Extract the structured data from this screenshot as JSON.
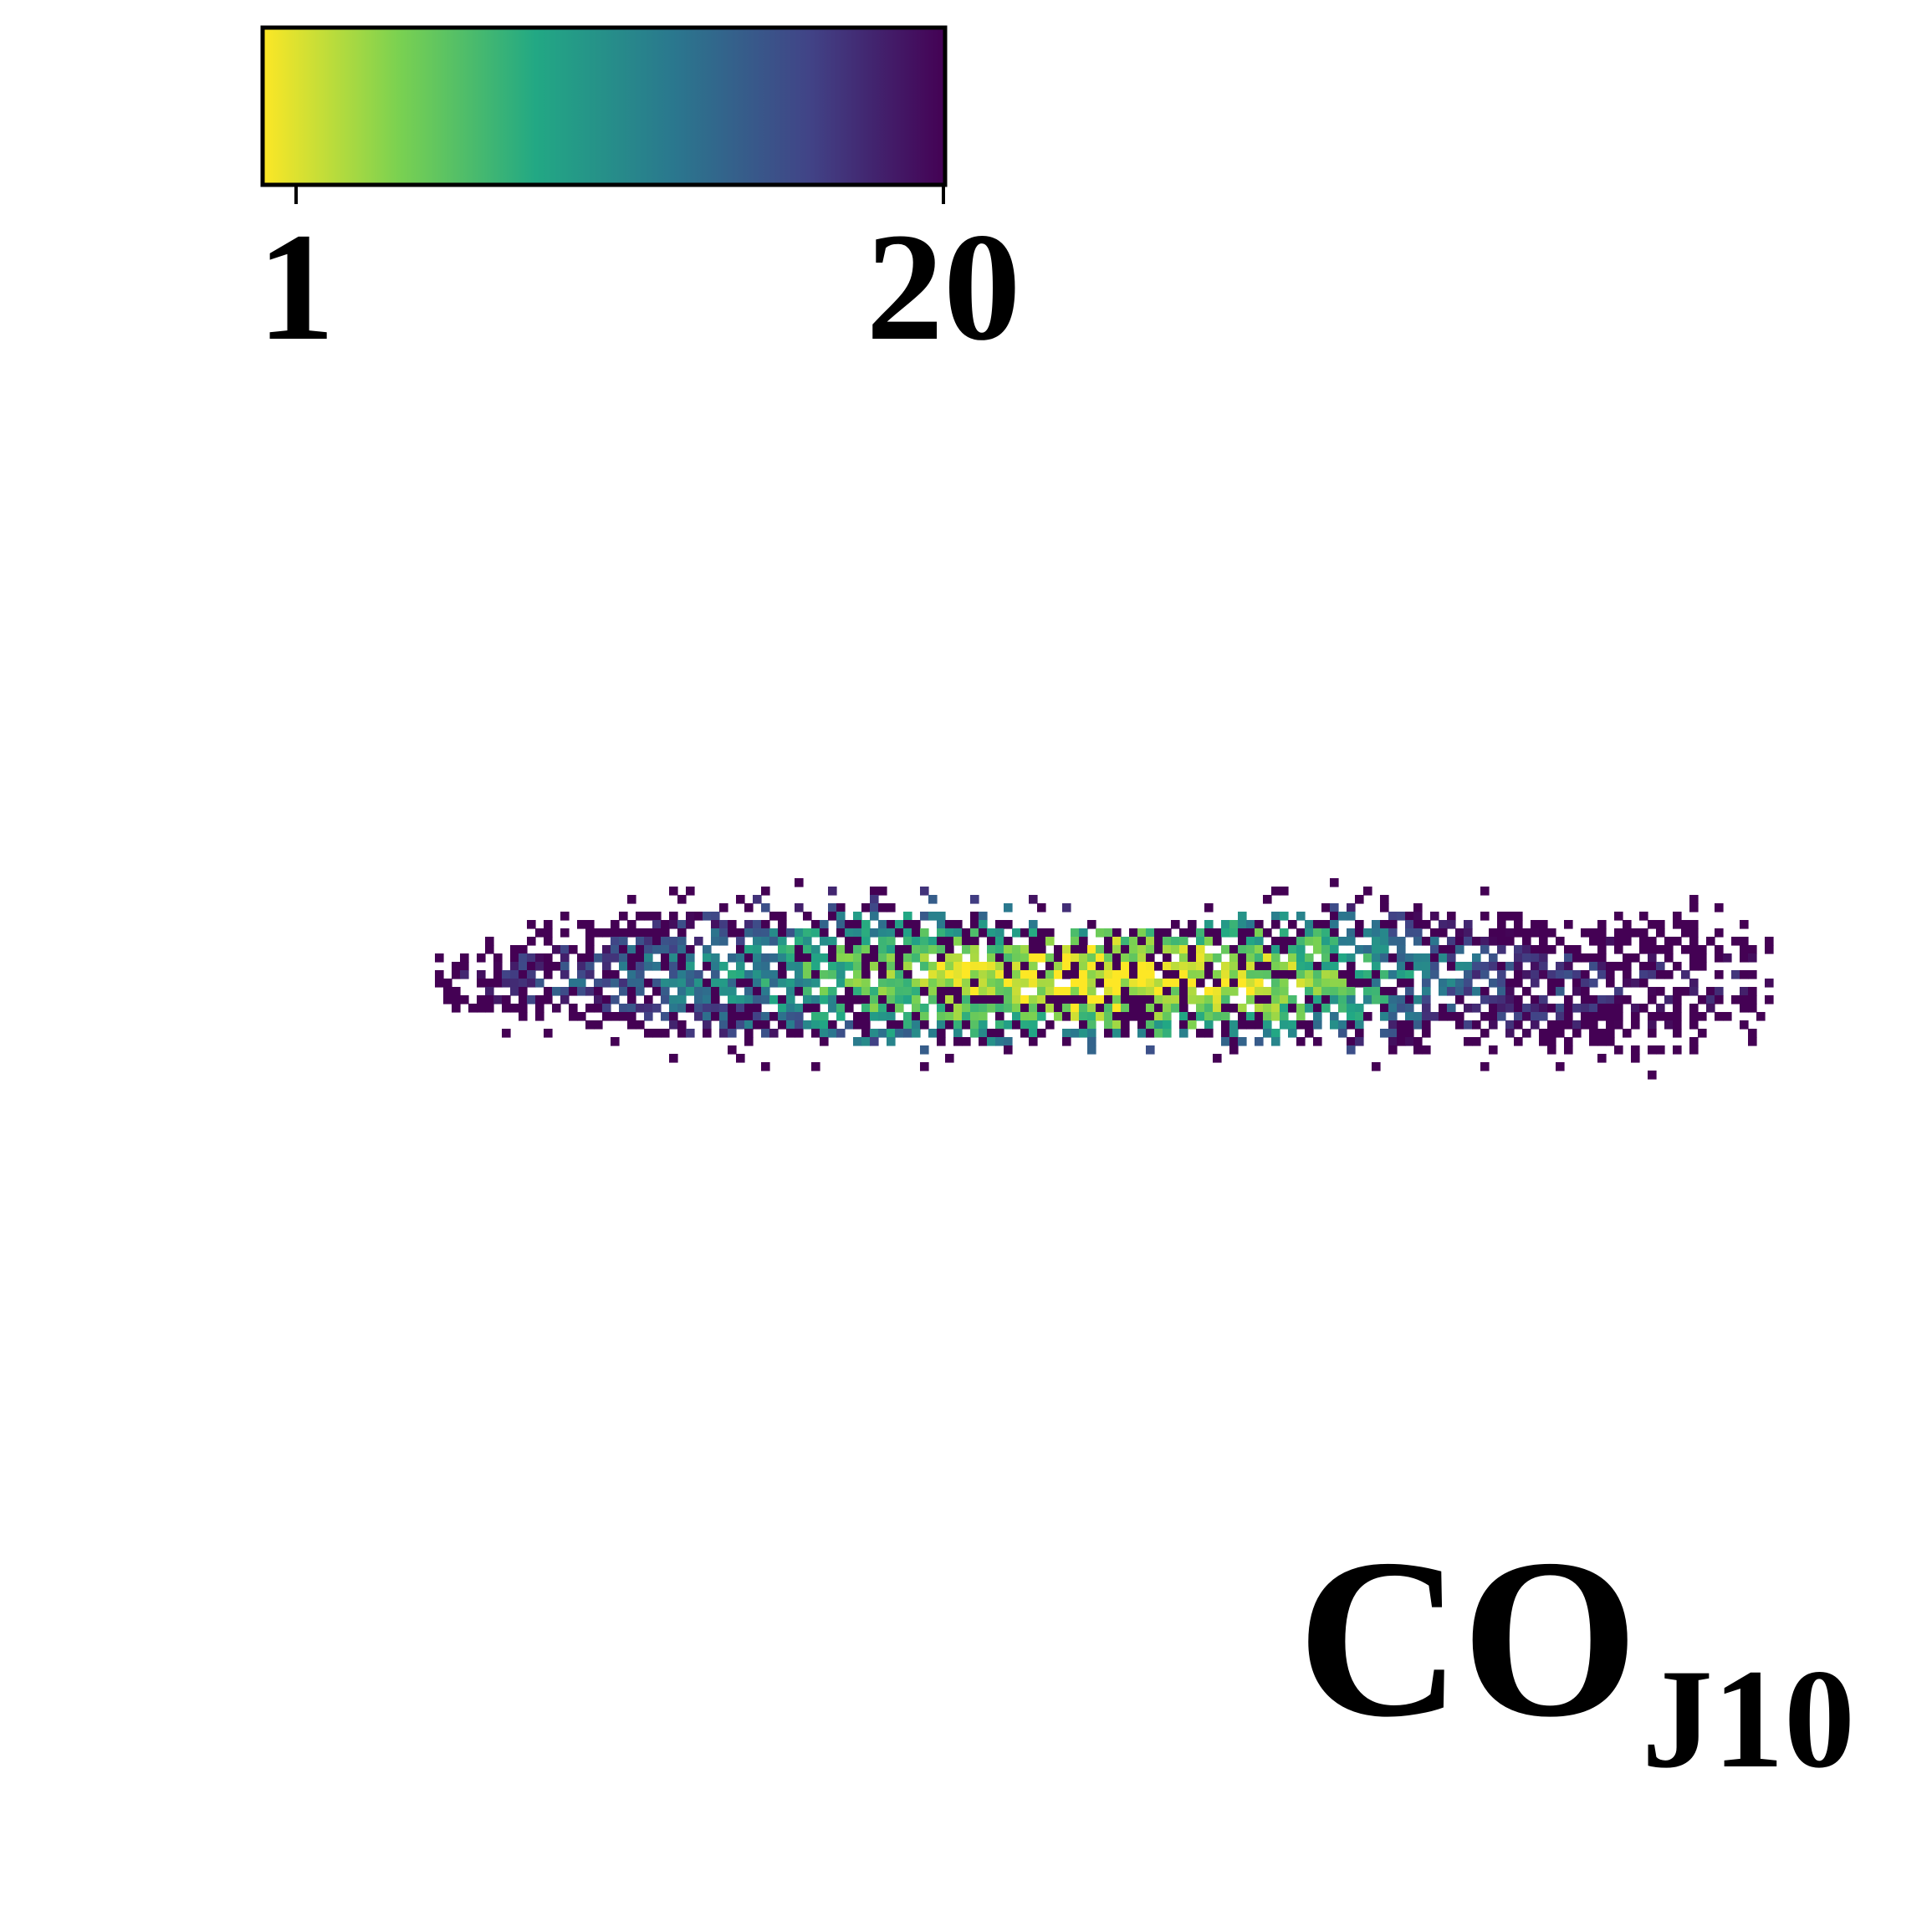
{
  "chart_data": {
    "type": "heatmap",
    "title": "",
    "label": {
      "main": "CO",
      "subscript": "J10"
    },
    "colorbar": {
      "colormap": "viridis_r",
      "orientation": "horizontal",
      "placement": "top-left",
      "vmin": 1,
      "vmax": 20,
      "ticks": [
        1,
        20
      ],
      "tick_labels": [
        "1",
        "20"
      ],
      "colors": [
        "#fde725",
        "#7ad151",
        "#22a884",
        "#2a788e",
        "#414487",
        "#440154"
      ]
    },
    "structure": {
      "description_kind": "edge-on disk map",
      "profile_samples": [
        {
          "x": -1.0,
          "center": 0.04,
          "half_width": 0.3,
          "value": 20,
          "density": 0.42
        },
        {
          "x": -0.9,
          "center": 0.04,
          "half_width": 0.45,
          "value": 18,
          "density": 0.6
        },
        {
          "x": -0.8,
          "center": 0.02,
          "half_width": 0.55,
          "value": 16,
          "density": 0.72
        },
        {
          "x": -0.7,
          "center": 0.0,
          "half_width": 0.65,
          "value": 14,
          "density": 0.8
        },
        {
          "x": -0.6,
          "center": 0.0,
          "half_width": 0.72,
          "value": 12,
          "density": 0.85
        },
        {
          "x": -0.5,
          "center": 0.0,
          "half_width": 0.8,
          "value": 10,
          "density": 0.88
        },
        {
          "x": -0.4,
          "center": 0.0,
          "half_width": 0.78,
          "value": 7,
          "density": 0.9
        },
        {
          "x": -0.3,
          "center": 0.02,
          "half_width": 0.75,
          "value": 5,
          "density": 0.93
        },
        {
          "x": -0.2,
          "center": 0.04,
          "half_width": 0.7,
          "value": 3,
          "density": 0.95
        },
        {
          "x": -0.1,
          "center": 0.06,
          "half_width": 0.65,
          "value": 2,
          "density": 0.96
        },
        {
          "x": 0.0,
          "center": 0.06,
          "half_width": 0.62,
          "value": 1,
          "density": 0.97
        },
        {
          "x": 0.1,
          "center": 0.06,
          "half_width": 0.62,
          "value": 2,
          "density": 0.94
        },
        {
          "x": 0.2,
          "center": 0.06,
          "half_width": 0.68,
          "value": 3,
          "density": 0.9
        },
        {
          "x": 0.3,
          "center": 0.02,
          "half_width": 0.75,
          "value": 5,
          "density": 0.85
        },
        {
          "x": 0.4,
          "center": 0.0,
          "half_width": 0.75,
          "value": 9,
          "density": 0.82
        },
        {
          "x": 0.5,
          "center": 0.0,
          "half_width": 0.72,
          "value": 13,
          "density": 0.78
        },
        {
          "x": 0.6,
          "center": 0.04,
          "half_width": 0.72,
          "value": 16,
          "density": 0.72
        },
        {
          "x": 0.7,
          "center": 0.08,
          "half_width": 0.78,
          "value": 18,
          "density": 0.66
        },
        {
          "x": 0.8,
          "center": 0.1,
          "half_width": 0.8,
          "value": 19,
          "density": 0.62
        },
        {
          "x": 0.9,
          "center": 0.08,
          "half_width": 0.7,
          "value": 20,
          "density": 0.5
        },
        {
          "x": 1.0,
          "center": 0.04,
          "half_width": 0.45,
          "value": 20,
          "density": 0.32
        }
      ]
    }
  }
}
